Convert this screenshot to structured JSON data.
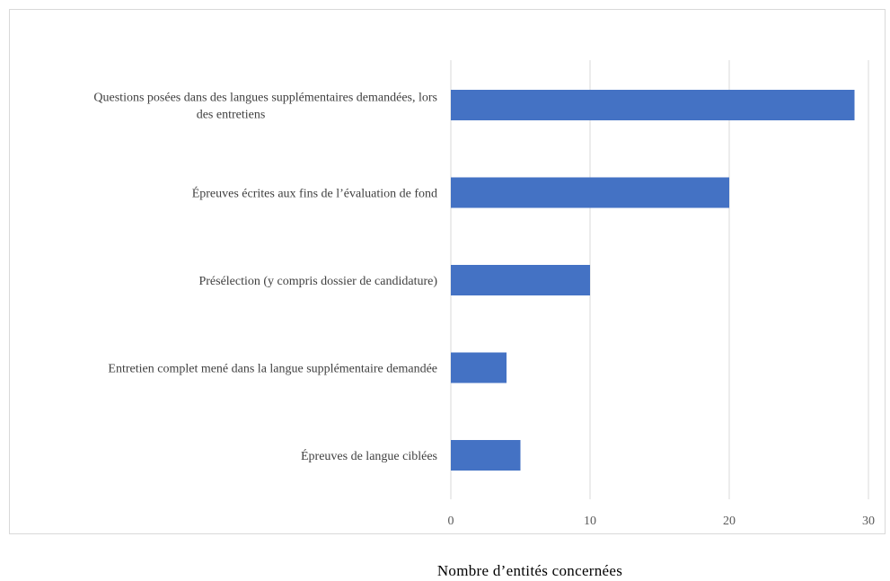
{
  "chart_data": {
    "type": "bar",
    "orientation": "horizontal",
    "categories": [
      "Questions posées dans des langues supplémentaires demandées, lors des entretiens",
      "Épreuves écrites aux fins de l’évaluation de fond",
      "Présélection (y compris dossier de candidature)",
      "Entretien complet mené dans la langue supplémentaire demandée",
      "Épreuves de langue ciblées"
    ],
    "category_lines": [
      [
        "Questions posées dans des langues supplémentaires demandées, lors",
        "des entretiens"
      ],
      [
        "Épreuves écrites aux fins de l’évaluation de fond"
      ],
      [
        "Présélection (y compris dossier de candidature)"
      ],
      [
        "Entretien complet mené dans la langue supplémentaire demandée"
      ],
      [
        "Épreuves de langue ciblées"
      ]
    ],
    "values": [
      29,
      20,
      10,
      4,
      5
    ],
    "xlabel": "Nombre d’entités concernées",
    "ylabel": "",
    "xlim": [
      0,
      30
    ],
    "xticks": [
      "0",
      "10",
      "20",
      "30"
    ],
    "grid": "vertical",
    "legend": "none",
    "bar_color": "#4472c4",
    "grid_color": "#d9d9d9"
  }
}
